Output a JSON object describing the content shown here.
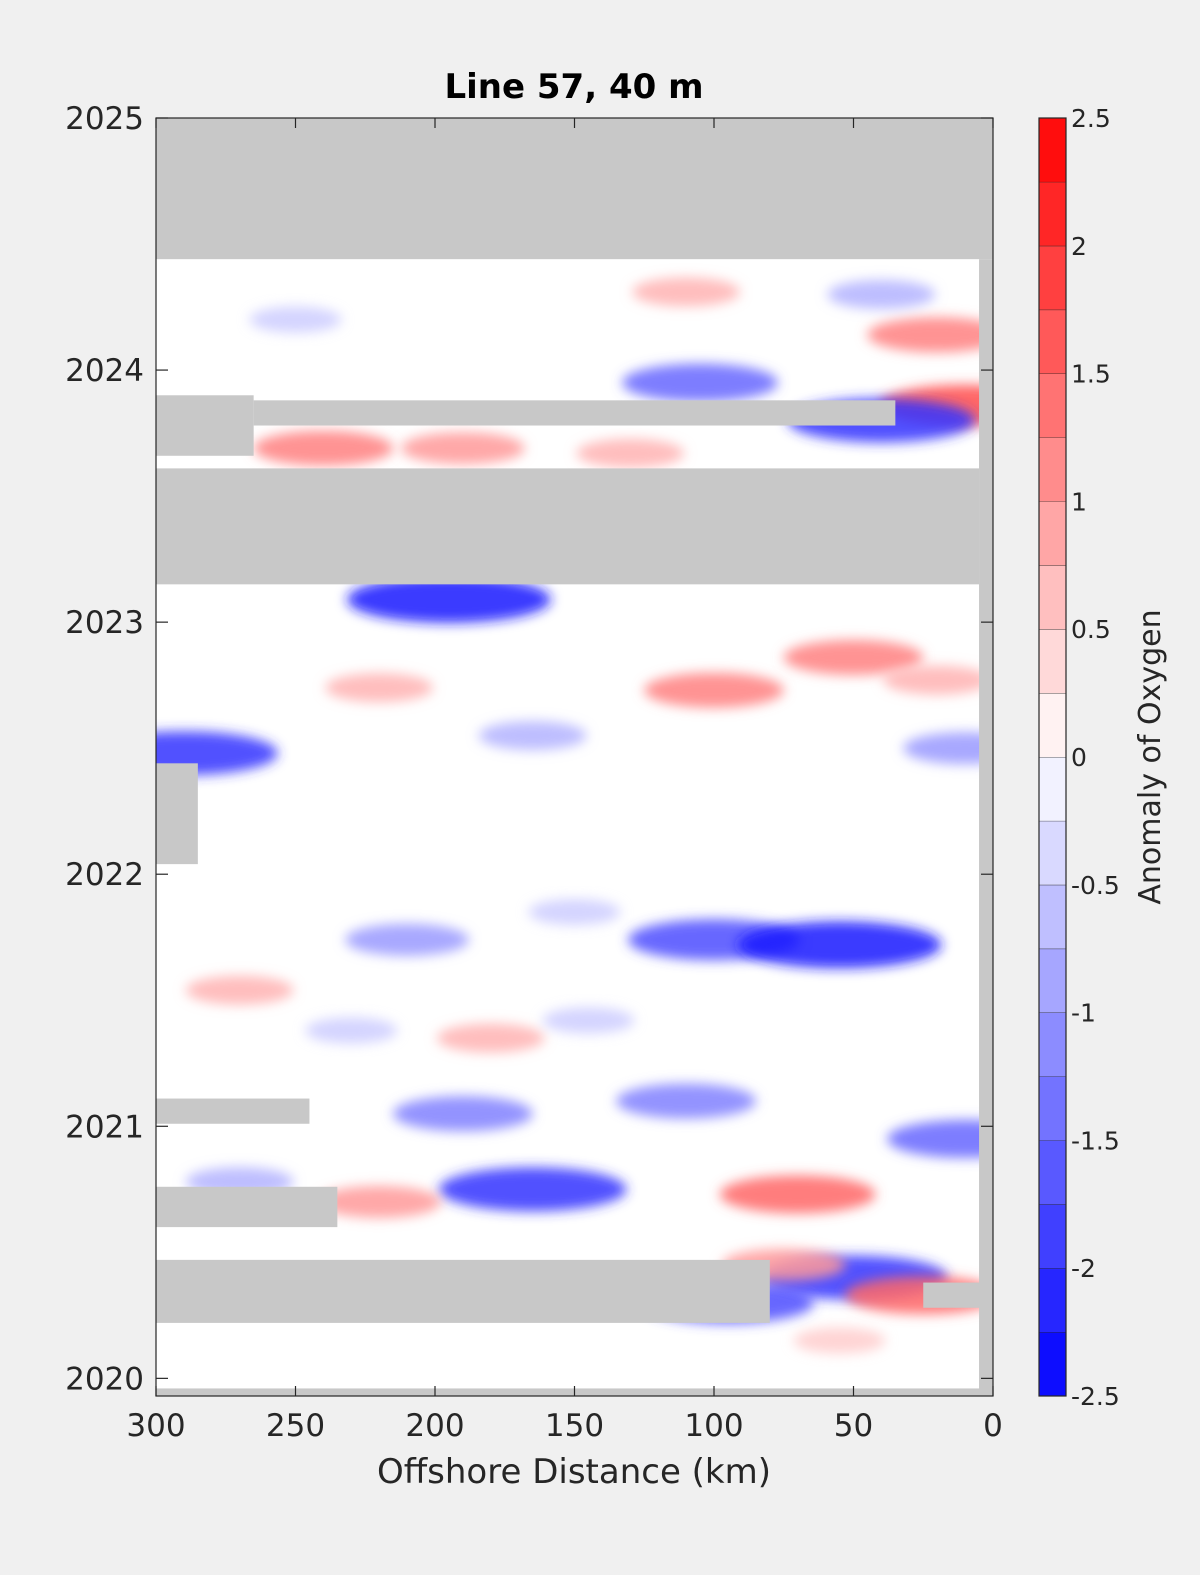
{
  "chart_data": {
    "type": "heatmap",
    "title": "Line 57, 40 m",
    "xlabel": "Offshore Distance (km)",
    "ylabel": "",
    "x_reversed": true,
    "xlim": [
      300,
      0
    ],
    "ylim": [
      2019.93,
      2025
    ],
    "x_ticks": [
      300,
      250,
      200,
      150,
      100,
      50,
      0
    ],
    "y_ticks": [
      2020,
      2021,
      2022,
      2023,
      2024,
      2025
    ],
    "no_data_color": "#c8c8c8",
    "colorbar": {
      "label": "Anomaly of Oxygen",
      "range": [
        -2.5,
        2.5
      ],
      "step": 0.25,
      "ticks": [
        -2.5,
        -2,
        -1.5,
        -1,
        -0.5,
        0,
        0.5,
        1,
        1.5,
        2,
        2.5
      ],
      "min_color": "#0000ff",
      "max_color": "#ff0000",
      "mid_color": "#ffffff"
    },
    "no_data_regions": [
      {
        "x": [
          300,
          0
        ],
        "y": [
          2024.44,
          2025.0
        ]
      },
      {
        "x": [
          300,
          5
        ],
        "y": [
          2023.15,
          2023.61
        ]
      },
      {
        "x": [
          300,
          265
        ],
        "y": [
          2023.66,
          2023.9
        ]
      },
      {
        "x": [
          265,
          35
        ],
        "y": [
          2023.78,
          2023.88
        ]
      },
      {
        "x": [
          300,
          285
        ],
        "y": [
          2022.04,
          2022.44
        ]
      },
      {
        "x": [
          300,
          245
        ],
        "y": [
          2021.01,
          2021.11
        ]
      },
      {
        "x": [
          300,
          235
        ],
        "y": [
          2020.6,
          2020.76
        ]
      },
      {
        "x": [
          300,
          80
        ],
        "y": [
          2020.22,
          2020.47
        ]
      },
      {
        "x": [
          25,
          0
        ],
        "y": [
          2020.28,
          2020.38
        ]
      },
      {
        "x": [
          5,
          0
        ],
        "y": [
          2019.93,
          2024.44
        ]
      },
      {
        "x": [
          300,
          0
        ],
        "y": [
          2019.93,
          2019.96
        ]
      }
    ],
    "anomaly_blobs": [
      {
        "x": 110,
        "y": 2024.31,
        "value": 0.75
      },
      {
        "x": 20,
        "y": 2024.14,
        "value": 1.25
      },
      {
        "x": 10,
        "y": 2023.86,
        "value": 1.75
      },
      {
        "x": 250,
        "y": 2024.2,
        "value": -0.5
      },
      {
        "x": 105,
        "y": 2023.95,
        "value": -1.5
      },
      {
        "x": 40,
        "y": 2023.8,
        "value": -2.0
      },
      {
        "x": 40,
        "y": 2024.3,
        "value": -0.75
      },
      {
        "x": 240,
        "y": 2023.69,
        "value": 1.25
      },
      {
        "x": 190,
        "y": 2023.69,
        "value": 1.0
      },
      {
        "x": 130,
        "y": 2023.67,
        "value": 0.75
      },
      {
        "x": 195,
        "y": 2023.09,
        "value": -2.25
      },
      {
        "x": 100,
        "y": 2022.73,
        "value": 1.25
      },
      {
        "x": 50,
        "y": 2022.86,
        "value": 1.25
      },
      {
        "x": 20,
        "y": 2022.77,
        "value": 0.75
      },
      {
        "x": 220,
        "y": 2022.74,
        "value": 0.75
      },
      {
        "x": 290,
        "y": 2022.48,
        "value": -2.0
      },
      {
        "x": 165,
        "y": 2022.55,
        "value": -0.75
      },
      {
        "x": 10,
        "y": 2022.5,
        "value": -1.0
      },
      {
        "x": 100,
        "y": 2021.74,
        "value": -1.75
      },
      {
        "x": 55,
        "y": 2021.72,
        "value": -2.25
      },
      {
        "x": 210,
        "y": 2021.74,
        "value": -1.0
      },
      {
        "x": 150,
        "y": 2021.85,
        "value": -0.5
      },
      {
        "x": 270,
        "y": 2021.54,
        "value": 0.75
      },
      {
        "x": 180,
        "y": 2021.35,
        "value": 0.75
      },
      {
        "x": 230,
        "y": 2021.38,
        "value": -0.5
      },
      {
        "x": 145,
        "y": 2021.42,
        "value": -0.5
      },
      {
        "x": 190,
        "y": 2021.05,
        "value": -1.25
      },
      {
        "x": 110,
        "y": 2021.1,
        "value": -1.25
      },
      {
        "x": 10,
        "y": 2020.95,
        "value": -1.5
      },
      {
        "x": 165,
        "y": 2020.75,
        "value": -2.0
      },
      {
        "x": 70,
        "y": 2020.73,
        "value": 1.5
      },
      {
        "x": 220,
        "y": 2020.7,
        "value": 1.0
      },
      {
        "x": 270,
        "y": 2020.78,
        "value": -0.75
      },
      {
        "x": 50,
        "y": 2020.4,
        "value": -2.0
      },
      {
        "x": 95,
        "y": 2020.3,
        "value": -1.75
      },
      {
        "x": 75,
        "y": 2020.45,
        "value": 1.0
      },
      {
        "x": 25,
        "y": 2020.33,
        "value": 1.5
      },
      {
        "x": 55,
        "y": 2020.15,
        "value": 0.5
      }
    ]
  }
}
